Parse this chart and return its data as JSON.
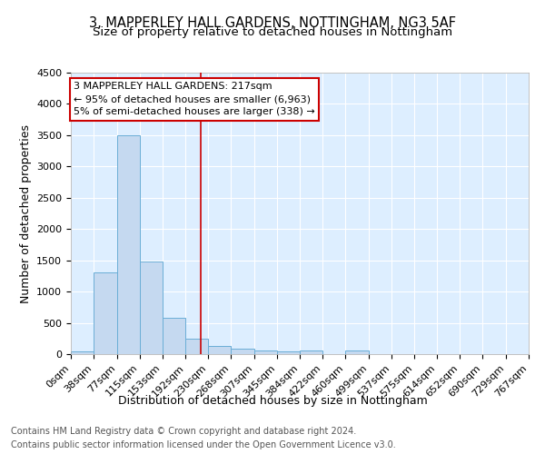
{
  "title": "3, MAPPERLEY HALL GARDENS, NOTTINGHAM, NG3 5AF",
  "subtitle": "Size of property relative to detached houses in Nottingham",
  "xlabel": "Distribution of detached houses by size in Nottingham",
  "ylabel": "Number of detached properties",
  "footer_line1": "Contains HM Land Registry data © Crown copyright and database right 2024.",
  "footer_line2": "Contains public sector information licensed under the Open Government Licence v3.0.",
  "bin_edges": [
    0,
    38,
    77,
    115,
    153,
    192,
    230,
    268,
    307,
    345,
    384,
    422,
    460,
    499,
    537,
    575,
    614,
    652,
    690,
    729,
    767
  ],
  "bar_heights": [
    50,
    1300,
    3500,
    1480,
    580,
    250,
    130,
    85,
    55,
    45,
    55,
    0,
    55,
    0,
    0,
    0,
    0,
    0,
    0,
    0
  ],
  "bar_color": "#c5d9f0",
  "bar_edge_color": "#6aaed6",
  "property_line_x": 217,
  "property_line_color": "#cc0000",
  "annotation_text_line1": "3 MAPPERLEY HALL GARDENS: 217sqm",
  "annotation_text_line2": "← 95% of detached houses are smaller (6,963)",
  "annotation_text_line3": "5% of semi-detached houses are larger (338) →",
  "annotation_box_color": "#ffffff",
  "annotation_box_edge_color": "#cc0000",
  "ylim": [
    0,
    4500
  ],
  "yticks": [
    0,
    500,
    1000,
    1500,
    2000,
    2500,
    3000,
    3500,
    4000,
    4500
  ],
  "plot_bg_color": "#ddeeff",
  "title_fontsize": 10.5,
  "subtitle_fontsize": 9.5,
  "xlabel_fontsize": 9,
  "ylabel_fontsize": 9,
  "tick_fontsize": 8,
  "annotation_fontsize": 8,
  "footer_fontsize": 7
}
